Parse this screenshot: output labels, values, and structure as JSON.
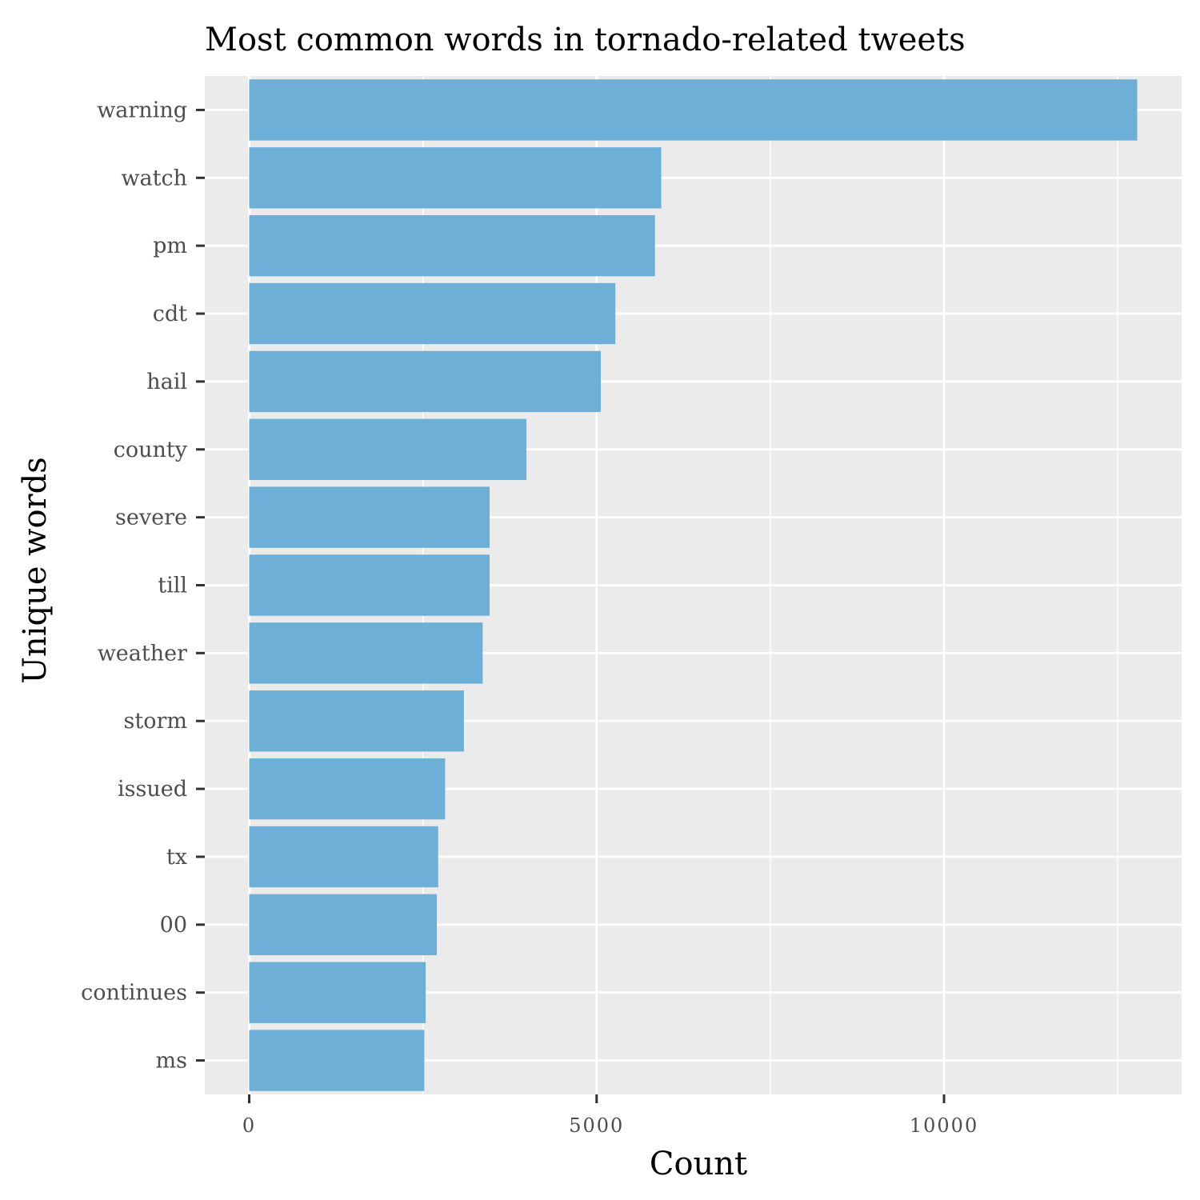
{
  "chart_data": {
    "type": "bar",
    "orientation": "horizontal",
    "title": "Most common words in tornado-related tweets",
    "xlabel": "Count",
    "ylabel": "Unique words",
    "categories": [
      "warning",
      "watch",
      "pm",
      "cdt",
      "hail",
      "county",
      "severe",
      "till",
      "weather",
      "storm",
      "issued",
      "tx",
      "00",
      "continues",
      "ms"
    ],
    "values": [
      12780,
      5930,
      5840,
      5270,
      5060,
      3990,
      3460,
      3460,
      3360,
      3090,
      2820,
      2720,
      2700,
      2540,
      2520
    ],
    "x_ticks": [
      0,
      5000,
      10000
    ],
    "x_tick_labels": [
      "0",
      "5000",
      "10000"
    ],
    "xlim": [
      -639,
      13419
    ],
    "grid": true,
    "legend": "none",
    "colors": {
      "bar": "#6EAFD8",
      "panel": "#EBEBEB",
      "grid": "#FFFFFF",
      "tick": "#333333"
    }
  }
}
